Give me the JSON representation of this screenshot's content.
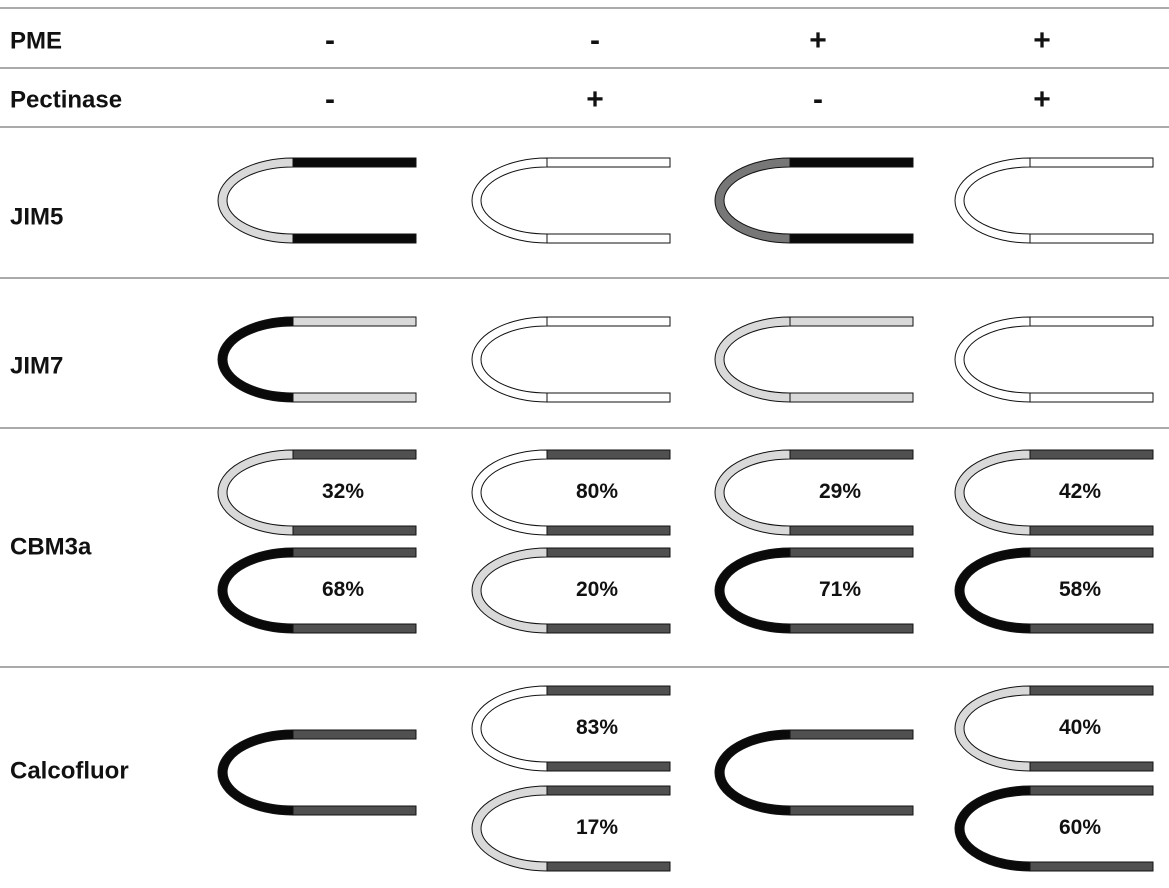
{
  "header": {
    "rows": [
      {
        "label": "PME",
        "values": [
          "-",
          "-",
          "+",
          "+"
        ]
      },
      {
        "label": "Pectinase",
        "values": [
          "-",
          "+",
          "-",
          "+"
        ]
      }
    ]
  },
  "rows": [
    {
      "label": "JIM5"
    },
    {
      "label": "JIM7"
    },
    {
      "label": "CBM3a",
      "cells": {
        "0": [
          "32%",
          "68%"
        ],
        "1": [
          "80%",
          "20%"
        ],
        "2": [
          "29%",
          "71%"
        ],
        "3": [
          "42%",
          "58%"
        ]
      }
    },
    {
      "label": "Calcofluor",
      "cells": {
        "1": [
          "83%",
          "17%"
        ],
        "3": [
          "40%",
          "60%"
        ]
      }
    }
  ]
}
